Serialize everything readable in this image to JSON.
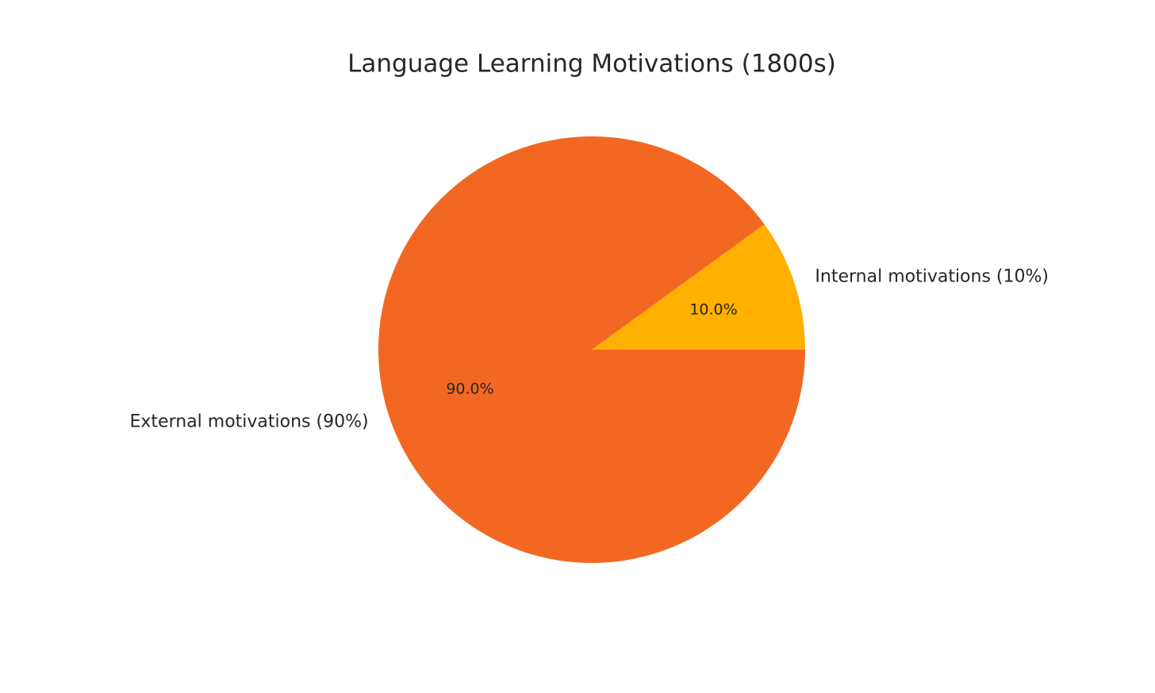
{
  "chart_data": {
    "type": "pie",
    "title": "Language Learning Motivations (1800s)",
    "categories": [
      "Internal motivations (10%)",
      "External motivations (90%)"
    ],
    "values": [
      10,
      90
    ],
    "value_labels": [
      "10.0%",
      "90.0%"
    ],
    "colors": [
      "#ffb000",
      "#f26822"
    ]
  }
}
